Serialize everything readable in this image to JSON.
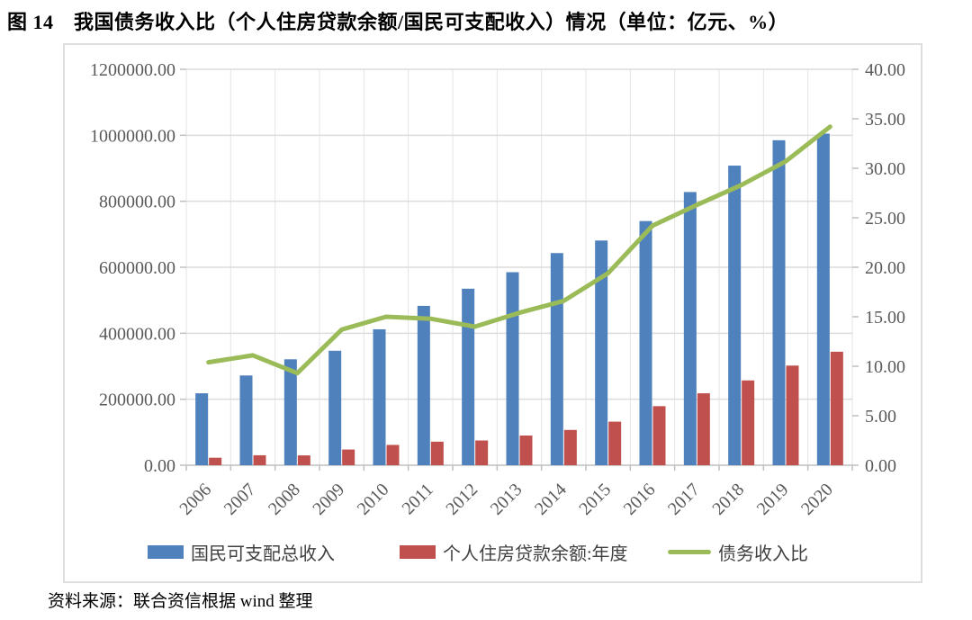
{
  "page": {
    "figure_title": "图 14　我国债务收入比（个人住房贷款余额/国民可支配收入）情况（单位：亿元、%）",
    "source_note": "资料来源：联合资信根据 wind 整理"
  },
  "chart_data": {
    "type": "bar+line",
    "title": "图 14　我国债务收入比（个人住房贷款余额/国民可支配收入）情况",
    "units": [
      "亿元",
      "%"
    ],
    "categories": [
      "2006",
      "2007",
      "2008",
      "2009",
      "2010",
      "2011",
      "2012",
      "2013",
      "2014",
      "2015",
      "2016",
      "2017",
      "2018",
      "2019",
      "2020"
    ],
    "series": [
      {
        "name": "国民可支配总收入",
        "type": "bar",
        "axis": "left",
        "color": "#4F81BD",
        "values": [
          218000,
          272000,
          321000,
          347000,
          412000,
          483000,
          535000,
          585000,
          643000,
          681000,
          740000,
          828000,
          908000,
          985000,
          1005000
        ]
      },
      {
        "name": "个人住房贷款余额:年度",
        "type": "bar",
        "axis": "left",
        "color": "#C0504D",
        "values": [
          22700,
          30200,
          29800,
          47600,
          61600,
          71400,
          75000,
          90000,
          107000,
          132000,
          179000,
          218000,
          257000,
          302000,
          344000
        ]
      },
      {
        "name": "债务收入比",
        "type": "line",
        "axis": "right",
        "color": "#9BBB59",
        "values": [
          10.4,
          11.1,
          9.3,
          13.7,
          15.0,
          14.8,
          14.0,
          15.4,
          16.6,
          19.4,
          24.2,
          26.3,
          28.3,
          30.7,
          34.2
        ]
      }
    ],
    "y_left": {
      "min": 0,
      "max": 1200000,
      "step": 200000,
      "ticks": [
        "0.00",
        "200000.00",
        "400000.00",
        "600000.00",
        "800000.00",
        "1000000.00",
        "1200000.00"
      ]
    },
    "y_right": {
      "min": 0,
      "max": 40,
      "step": 5,
      "ticks": [
        "0.00",
        "5.00",
        "10.00",
        "15.00",
        "20.00",
        "25.00",
        "30.00",
        "35.00",
        "40.00"
      ]
    },
    "grid": true,
    "legend_position": "bottom",
    "colors": {
      "gridline": "#dcdcdc",
      "vertical_gridline": "#e3e3e3",
      "axis_line": "#bfbfbf",
      "axis_text": "#595959"
    }
  }
}
